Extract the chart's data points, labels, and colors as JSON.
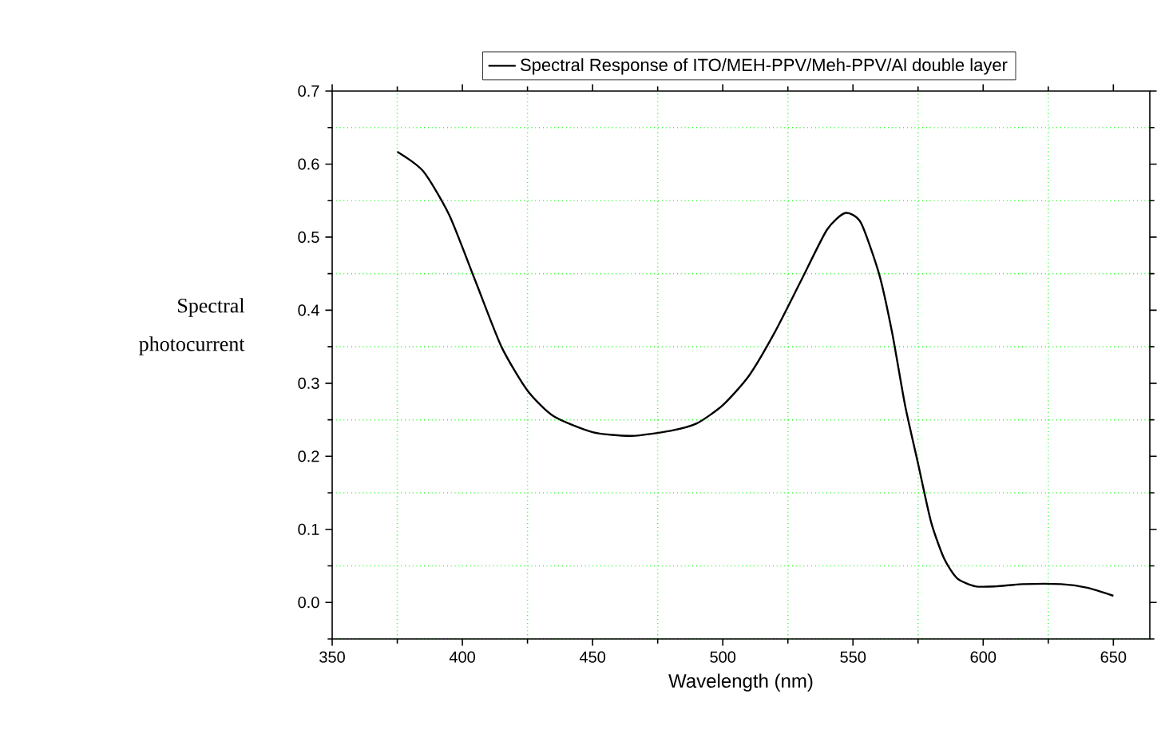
{
  "chart_data": {
    "type": "line",
    "xlabel": "Wavelength (nm)",
    "ylabel": "Spectral photocurrent",
    "xlim": [
      350,
      664
    ],
    "ylim": [
      -0.05,
      0.7
    ],
    "xticks": [
      350,
      {
        "value": 375,
        "label": null
      },
      400,
      {
        "value": 425,
        "label": null
      },
      450,
      {
        "value": 475,
        "label": null
      },
      500,
      {
        "value": 525,
        "label": null
      },
      550,
      {
        "value": 575,
        "label": null
      },
      600,
      {
        "value": 625,
        "label": null
      },
      650
    ],
    "yticks": [
      {
        "value": -0.05,
        "label": null
      },
      {
        "value": 0,
        "label": "0.0"
      },
      {
        "value": 0.05,
        "label": null
      },
      {
        "value": 0.15,
        "label": null
      },
      {
        "value": 0.25,
        "label": null
      },
      {
        "value": 0.35,
        "label": null
      },
      {
        "value": 0.45,
        "label": null
      },
      {
        "value": 0.55,
        "label": null
      },
      {
        "value": 0.65,
        "label": null
      },
      {
        "value": 0.1,
        "label": "0.1"
      },
      {
        "value": 0.2,
        "label": "0.2"
      },
      {
        "value": 0.3,
        "label": "0.3"
      },
      {
        "value": 0.4,
        "label": "0.4"
      },
      {
        "value": 0.5,
        "label": "0.5"
      },
      {
        "value": 0.6,
        "label": "0.6"
      },
      {
        "value": 0.7,
        "label": "0.7"
      }
    ],
    "grid": true,
    "legend": "top",
    "line_style": "solid",
    "marker": "none",
    "series": [
      {
        "name": "Spectral Response of ITO/MEH-PPV/Meh-PPV/Al double layer",
        "color": "#000000",
        "x": [
          375,
          385,
          395,
          405,
          415,
          425,
          435,
          450,
          465,
          480,
          490,
          500,
          510,
          520,
          530,
          540,
          547,
          553,
          560,
          565,
          570,
          575,
          580,
          585,
          590,
          597,
          605,
          615,
          630,
          640,
          650
        ],
        "values": [
          0.617,
          0.59,
          0.53,
          0.44,
          0.35,
          0.29,
          0.255,
          0.233,
          0.228,
          0.235,
          0.245,
          0.27,
          0.31,
          0.37,
          0.44,
          0.51,
          0.533,
          0.52,
          0.45,
          0.37,
          0.27,
          0.19,
          0.11,
          0.06,
          0.033,
          0.022,
          0.022,
          0.025,
          0.025,
          0.02,
          0.009
        ]
      }
    ]
  }
}
